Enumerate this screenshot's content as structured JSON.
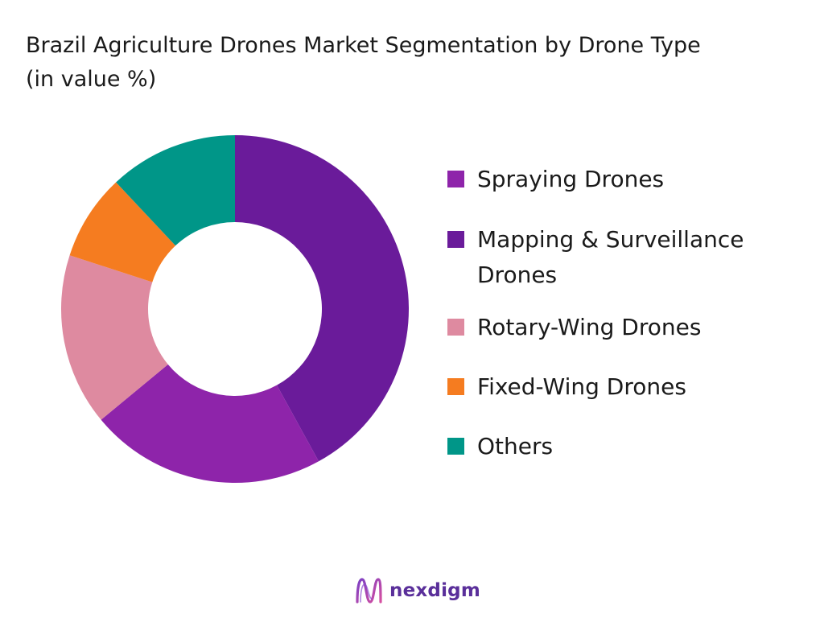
{
  "chart_data": {
    "type": "pie",
    "title": "Brazil Agriculture Drones Market Segmentation by Drone Type (in value %)",
    "donut": true,
    "legend_position": "right",
    "start_angle": "12 o'clock, clockwise",
    "categories": [
      "Spraying Drones",
      "Mapping & Surveillance Drones",
      "Rotary-Wing Drones",
      "Fixed-Wing Drones",
      "Others"
    ],
    "values": [
      22,
      42,
      16,
      8,
      12
    ],
    "draw_order": [
      "Mapping & Surveillance Drones",
      "Spraying Drones",
      "Rotary-Wing Drones",
      "Fixed-Wing Drones",
      "Others"
    ],
    "colors": {
      "Spraying Drones": "#8E24AA",
      "Mapping & Surveillance Drones": "#6A1B9A",
      "Rotary-Wing Drones": "#DE8AA0",
      "Fixed-Wing Drones": "#F57C20",
      "Others": "#009688"
    }
  },
  "legend": [
    {
      "label": "Spraying Drones",
      "color": "#8E24AA"
    },
    {
      "label": "Mapping & Surveillance Drones",
      "color": "#6A1B9A"
    },
    {
      "label": "Rotary-Wing Drones",
      "color": "#DE8AA0"
    },
    {
      "label": "Fixed-Wing Drones",
      "color": "#F57C20"
    },
    {
      "label": "Others",
      "color": "#009688"
    }
  ],
  "brand": {
    "name": "nexdigm",
    "icon": "nexdigm-logo-icon",
    "color": "#5a2f9a"
  }
}
